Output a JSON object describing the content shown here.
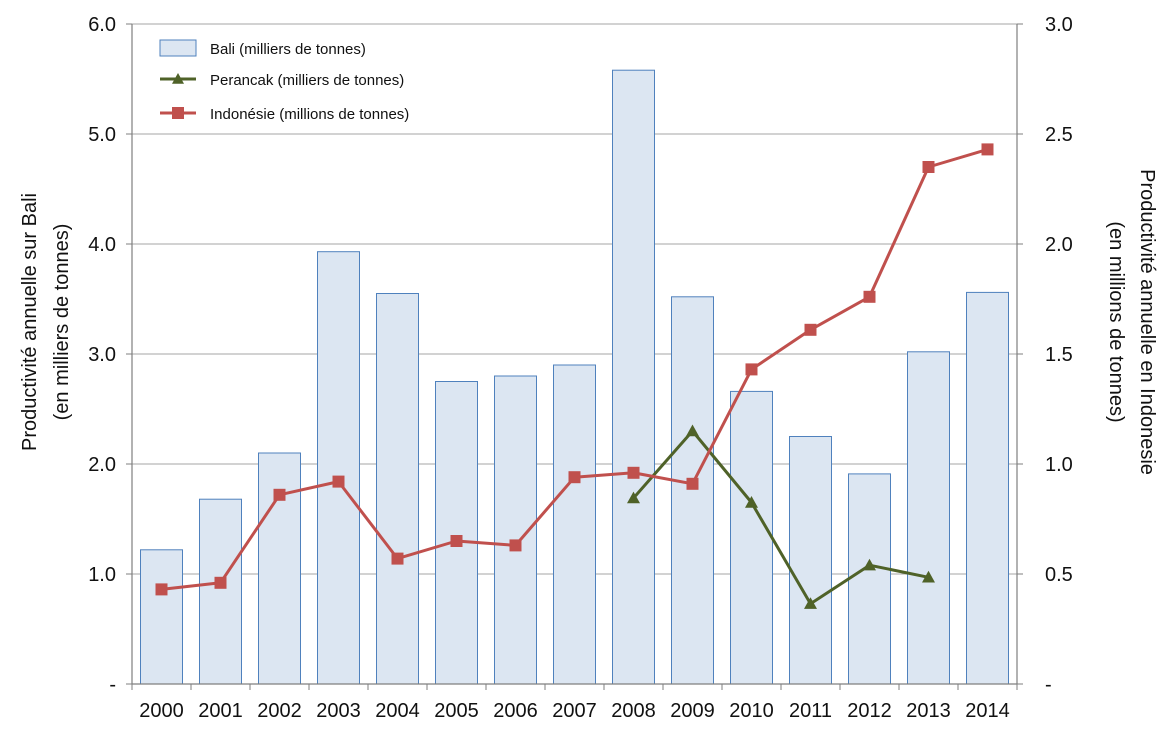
{
  "chart_data": {
    "type": "bar",
    "categories": [
      "2000",
      "2001",
      "2002",
      "2003",
      "2004",
      "2005",
      "2006",
      "2007",
      "2008",
      "2009",
      "2010",
      "2011",
      "2012",
      "2013",
      "2014"
    ],
    "y_left": {
      "label_line1": "Productivité annuelle sur Bali",
      "label_line2": "(en milliers de tonnes)",
      "ylim": [
        0,
        6
      ],
      "ticks": [
        0,
        1,
        2,
        3,
        4,
        5,
        6
      ],
      "tick_labels": [
        "-",
        "1.0",
        "2.0",
        "3.0",
        "4.0",
        "5.0",
        "6.0"
      ]
    },
    "y_right": {
      "label_line1": "Productivité annuelle en Indonesie",
      "label_line2": "(en millions de tonnes)",
      "ylim": [
        0,
        3
      ],
      "ticks": [
        0,
        0.5,
        1,
        1.5,
        2,
        2.5,
        3
      ],
      "tick_labels": [
        "-",
        "0.5",
        "1.0",
        "1.5",
        "2.0",
        "2.5",
        "3.0"
      ]
    },
    "series": [
      {
        "name": "Bali (milliers de tonnes)",
        "type": "bar",
        "axis": "left",
        "color": "#dce6f2",
        "stroke": "#4f81bd",
        "values": [
          1.22,
          1.68,
          2.1,
          3.93,
          3.55,
          2.75,
          2.8,
          2.9,
          5.58,
          3.52,
          2.66,
          2.25,
          1.91,
          3.02,
          3.56
        ]
      },
      {
        "name": "Perancak (milliers de tonnes)",
        "type": "line",
        "axis": "left",
        "color": "#4f6228",
        "marker": "triangle",
        "values": [
          null,
          null,
          null,
          null,
          null,
          null,
          null,
          null,
          1.69,
          2.3,
          1.65,
          0.73,
          1.08,
          0.97,
          null
        ]
      },
      {
        "name": "Indonésie (millions de tonnes)",
        "type": "line",
        "axis": "right",
        "color": "#c0504d",
        "marker": "square",
        "values": [
          0.43,
          0.46,
          0.86,
          0.92,
          0.57,
          0.65,
          0.63,
          0.94,
          0.96,
          0.91,
          1.43,
          1.61,
          1.76,
          2.35,
          2.43
        ]
      }
    ],
    "grid": true,
    "legend_position": "top-left"
  }
}
